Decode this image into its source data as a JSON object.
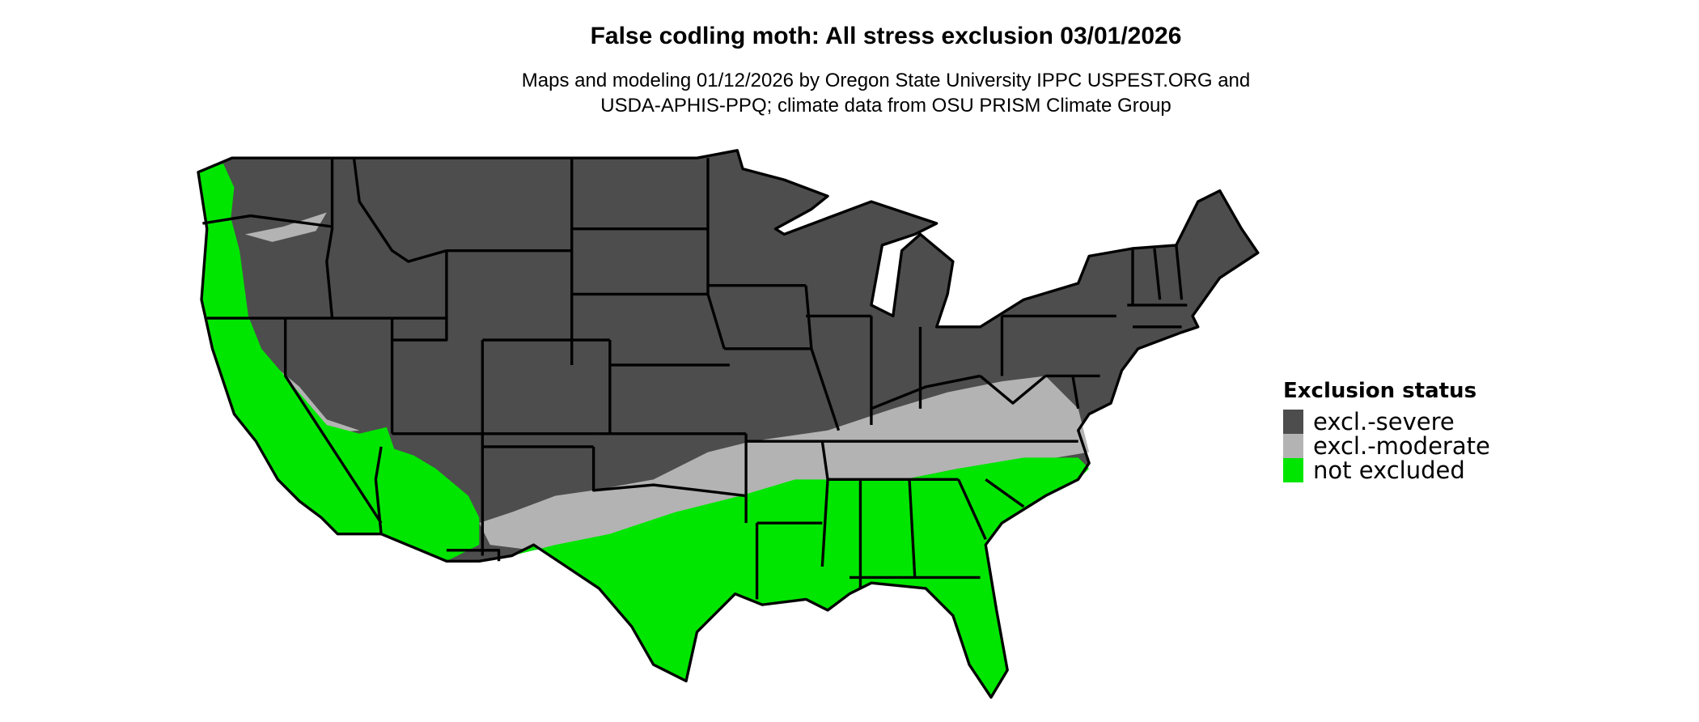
{
  "title": "False codling moth: All stress exclusion 03/01/2026",
  "subtitle": [
    "Maps and modeling 01/12/2026 by Oregon State University IPPC USPEST.ORG and",
    "USDA-APHIS-PPQ; climate data from OSU PRISM Climate Group"
  ],
  "legend": {
    "title": "Exclusion status",
    "items": [
      {
        "label": "excl.-severe",
        "color": "#4d4d4d"
      },
      {
        "label": "excl.-moderate",
        "color": "#b3b3b3"
      },
      {
        "label": "not excluded",
        "color": "#00e600"
      }
    ]
  },
  "map": {
    "region": "Contiguous United States",
    "border_color": "#000000"
  }
}
